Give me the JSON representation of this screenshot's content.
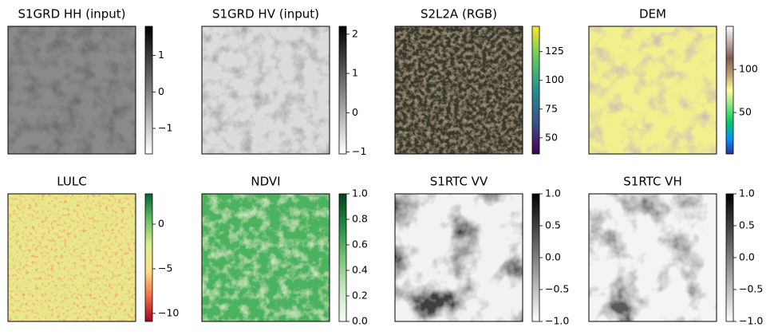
{
  "chart_data": [
    {
      "type": "image",
      "title": "S1GRD HH (input)",
      "colormap": "gray_r",
      "clim": [
        -1.7,
        1.8
      ],
      "cticks": [
        {
          "value": -1,
          "label": "−1"
        },
        0,
        1
      ]
    },
    {
      "type": "image",
      "title": "S1GRD HV (input)",
      "colormap": "gray_r",
      "clim": [
        -1.05,
        2.2
      ],
      "cticks": [
        {
          "value": -1,
          "label": "−1"
        },
        0,
        1,
        2
      ]
    },
    {
      "type": "image",
      "title": "S2L2A (RGB)",
      "colormap": "viridis",
      "clim": [
        36,
        147
      ],
      "cticks": [
        50,
        75,
        100,
        125
      ]
    },
    {
      "type": "image",
      "title": "DEM",
      "colormap": "terrain",
      "clim": [
        2,
        150
      ],
      "cticks": [
        50,
        100
      ]
    },
    {
      "type": "image",
      "title": "LULC",
      "colormap": "RdYlGn",
      "clim": [
        -10.9,
        3.4
      ],
      "cticks": [
        {
          "value": -10,
          "label": "−10"
        },
        {
          "value": -5,
          "label": "−5"
        },
        0
      ]
    },
    {
      "type": "image",
      "title": "NDVI",
      "colormap": "Greens",
      "clim": [
        0,
        1
      ],
      "cticks": [
        {
          "value": 0,
          "label": "0.0"
        },
        0.2,
        0.4,
        0.6,
        0.8,
        {
          "value": 1,
          "label": "1.0"
        }
      ]
    },
    {
      "type": "image",
      "title": "S1RTC VV",
      "colormap": "gray_r",
      "clim": [
        -1,
        1
      ],
      "cticks": [
        {
          "value": -1,
          "label": "−1.0"
        },
        {
          "value": -0.5,
          "label": "−0.5"
        },
        {
          "value": 0,
          "label": "0.0"
        },
        0.5,
        {
          "value": 1,
          "label": "1.0"
        }
      ]
    },
    {
      "type": "image",
      "title": "S1RTC VH",
      "colormap": "gray_r",
      "clim": [
        -1,
        1
      ],
      "cticks": [
        {
          "value": -1,
          "label": "−1.0"
        },
        {
          "value": -0.5,
          "label": "−0.5"
        },
        {
          "value": 0,
          "label": "0.0"
        },
        0.5,
        {
          "value": 1,
          "label": "1.0"
        }
      ]
    }
  ]
}
